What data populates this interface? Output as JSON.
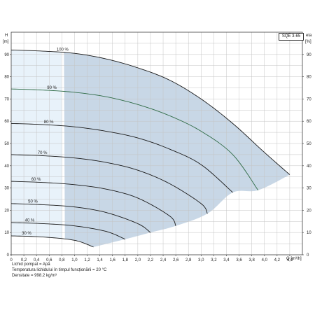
{
  "chart_data": {
    "type": "line",
    "model": "SQE 3-65",
    "y_left_label": "H",
    "y_left_unit": "[m]",
    "y_right_label": "eta",
    "y_right_unit": "[%]",
    "x_unit": "Q [m³/h]",
    "xlim": [
      0,
      4.6
    ],
    "ylim": [
      0,
      100
    ],
    "x_ticks": [
      "0",
      "0,2",
      "0,4",
      "0,6",
      "0,8",
      "1,0",
      "1,2",
      "1,4",
      "1,6",
      "1,8",
      "2,0",
      "2,2",
      "2,4",
      "2,6",
      "2,8",
      "3,0",
      "3,2",
      "3,4",
      "3,6",
      "3,8",
      "4,0",
      "4,2",
      "4,4"
    ],
    "y_ticks": [
      "0",
      "10",
      "20",
      "30",
      "40",
      "50",
      "60",
      "70",
      "80",
      "90"
    ],
    "grid": true,
    "operating_region": {
      "x_min": 0.82,
      "color": "#c8d7e6"
    },
    "light_region": {
      "x_max": 0.82,
      "color": "#e8f2fa"
    },
    "series": [
      {
        "name": "100 %",
        "x": [
          0,
          0.5,
          1.0,
          1.5,
          2.0,
          2.5,
          3.0,
          3.5,
          4.0,
          4.4
        ],
        "y": [
          92,
          91.5,
          90.5,
          88,
          84,
          78.5,
          70,
          59,
          46,
          36
        ]
      },
      {
        "name": "90 %",
        "x": [
          0,
          0.5,
          1.0,
          1.5,
          2.0,
          2.5,
          3.0,
          3.5,
          3.9
        ],
        "y": [
          74.5,
          74,
          73,
          71,
          67.5,
          62.5,
          55.5,
          45,
          29
        ]
      },
      {
        "name": "80 %",
        "x": [
          0,
          0.5,
          1.0,
          1.5,
          2.0,
          2.5,
          3.0,
          3.5
        ],
        "y": [
          59,
          58.5,
          57.5,
          55.5,
          52.5,
          47.5,
          40.5,
          28
        ]
      },
      {
        "name": "70 %",
        "x": [
          0,
          0.5,
          1.0,
          1.5,
          2.0,
          2.5,
          3.0,
          3.1
        ],
        "y": [
          45,
          44.5,
          43.5,
          41.5,
          38,
          32,
          23,
          18.5
        ]
      },
      {
        "name": "60 %",
        "x": [
          0,
          0.5,
          1.0,
          1.5,
          2.0,
          2.5,
          2.6
        ],
        "y": [
          33,
          32.5,
          31.5,
          29.5,
          25.5,
          17.5,
          13
        ]
      },
      {
        "name": "50 %",
        "x": [
          0,
          0.5,
          1.0,
          1.5,
          2.0,
          2.2
        ],
        "y": [
          23,
          22.5,
          21.5,
          19,
          14,
          10
        ]
      },
      {
        "name": "40 %",
        "x": [
          0,
          0.5,
          1.0,
          1.5,
          1.8
        ],
        "y": [
          14.5,
          14,
          13,
          10.5,
          7
        ]
      },
      {
        "name": "30 %",
        "x": [
          0,
          0.5,
          1.0,
          1.3
        ],
        "y": [
          8.5,
          8,
          6.5,
          3.5
        ]
      }
    ],
    "series_colors": [
      "#1a1a1a",
      "#2f6b46",
      "#1a1a1a",
      "#1a1a1a",
      "#1a1a1a",
      "#1a1a1a",
      "#1a1a1a",
      "#1a1a1a"
    ]
  },
  "footer": {
    "line1": "Lichid pompat = Apă",
    "line2": "Temperatura lichidului în timpul funcționării = 20 °C",
    "line3": "Densitate = 998.2 kg/m³"
  }
}
